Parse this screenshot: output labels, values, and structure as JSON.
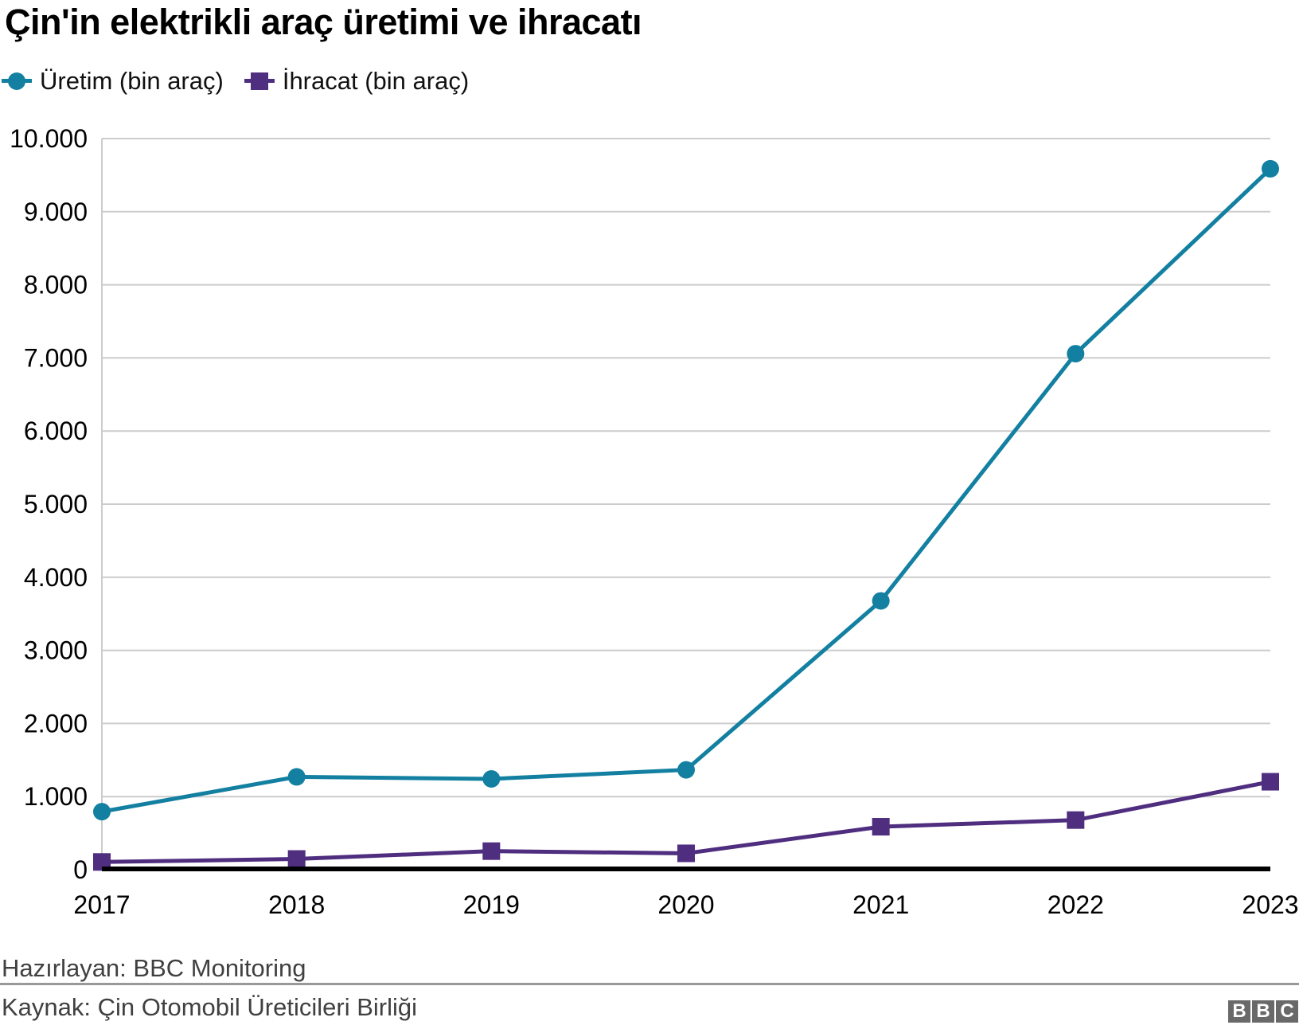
{
  "chart_data": {
    "type": "line",
    "title": "Çin'in elektrikli araç üretimi ve ihracatı",
    "x": [
      "2017",
      "2018",
      "2019",
      "2020",
      "2021",
      "2022",
      "2023"
    ],
    "series": [
      {
        "name": "Üretim (bin araç)",
        "marker": "circle",
        "color": "#1380a1",
        "values": [
          794,
          1270,
          1242,
          1366,
          3677,
          7058,
          9587
        ]
      },
      {
        "name": "İhracat (bin araç)",
        "marker": "square",
        "color": "#4f2d7f",
        "values": [
          106,
          147,
          254,
          224,
          588,
          679,
          1203
        ]
      }
    ],
    "ylim": [
      0,
      10000
    ],
    "ytick_step": 1000,
    "ytick_labels": [
      "0",
      "1.000",
      "2.000",
      "3.000",
      "4.000",
      "5.000",
      "6.000",
      "7.000",
      "8.000",
      "9.000",
      "10.000"
    ],
    "grid": "horizontal",
    "legend_position": "top-left",
    "colors": {
      "gridline": "#cccccc",
      "y_axis_line": "#cccccc",
      "x_axis_line": "#000000",
      "tick_text": "#000000"
    }
  },
  "footer": {
    "prepared_by": "Hazırlayan: BBC Monitoring",
    "source": "Kaynak: Çin Otomobil Üreticileri Birliği",
    "logo_letters": [
      "B",
      "B",
      "C"
    ]
  }
}
